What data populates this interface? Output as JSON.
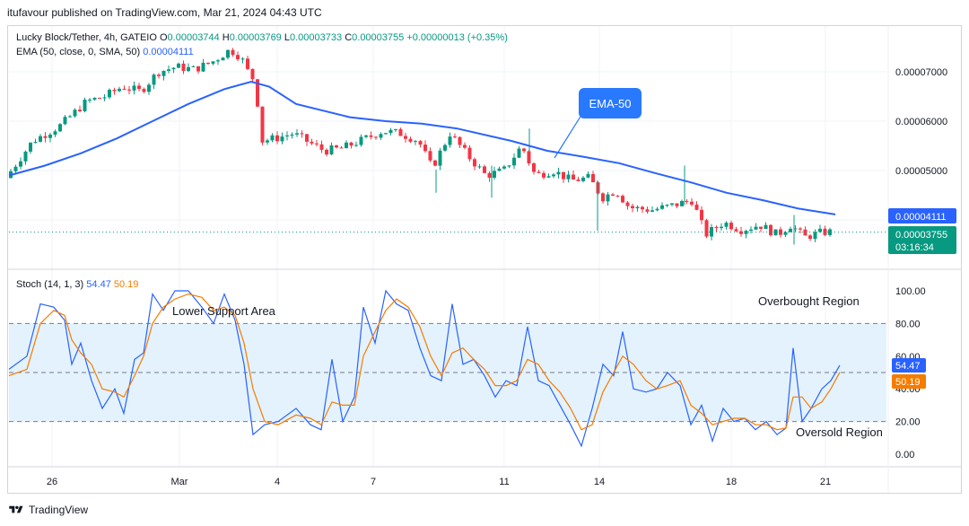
{
  "publisher_line": "itufavour published on TradingView.com, Mar 21, 2024 04:43 UTC",
  "footer_brand": "TradingView",
  "legend": {
    "symbol": "Lucky Block/Tether, 4h, GATEIO",
    "o_label": "O",
    "o_value": "0.00003744",
    "h_label": "H",
    "h_value": "0.00003769",
    "l_label": "L",
    "l_value": "0.00003733",
    "c_label": "C",
    "c_value": "0.00003755",
    "change": "+0.00000013 (+0.35%)",
    "ema_label": "EMA (50, close, 0, SMA, 50)",
    "ema_value": "0.00004111",
    "stoch_label": "Stoch (14, 1, 3)",
    "stoch_k": "54.47",
    "stoch_d": "50.19"
  },
  "price_badges": {
    "ema": "0.00004111",
    "last": "0.00003755",
    "countdown": "03:16:34"
  },
  "stoch_badges": {
    "k": "54.47",
    "d": "50.19"
  },
  "annotations": {
    "ema_callout": "EMA-50",
    "lower_support": "Lower Support Area",
    "overbought": "Overbought Region",
    "oversold": "Oversold Region"
  },
  "colors": {
    "up": "#089981",
    "down": "#f23645",
    "ema": "#2962ff",
    "stoch_k": "#2962ff",
    "stoch_d": "#f57c00",
    "band": "#e3f2fd",
    "callout": "#2979ff",
    "label_badge": "#2962ff"
  },
  "chart_data": [
    {
      "type": "candlestick",
      "title": "Lucky Block/Tether, 4h, GATEIO",
      "x_ticks": [
        "26",
        "Mar",
        "4",
        "7",
        "11",
        "14",
        "18",
        "21"
      ],
      "y_ticks": [
        "0.00007000",
        "0.00006000",
        "0.00005000"
      ],
      "ylim": [
        3.3e-05,
        7.8e-05
      ],
      "last_price": 3.755e-05,
      "ema50_last": 4.111e-05,
      "series": [
        {
          "name": "EMA (50, close, 0, SMA, 50)",
          "points": [
            [
              0,
              4.9e-05
            ],
            [
              40,
              5.1e-05
            ],
            [
              80,
              5.35e-05
            ],
            [
              120,
              5.65e-05
            ],
            [
              160,
              6e-05
            ],
            [
              200,
              6.35e-05
            ],
            [
              240,
              6.65e-05
            ],
            [
              270,
              6.8e-05
            ],
            [
              290,
              6.7e-05
            ],
            [
              320,
              6.35e-05
            ],
            [
              380,
              6.08e-05
            ],
            [
              420,
              6e-05
            ],
            [
              460,
              5.95e-05
            ],
            [
              500,
              5.85e-05
            ],
            [
              560,
              5.6e-05
            ],
            [
              600,
              5.4e-05
            ],
            [
              640,
              5.28e-05
            ],
            [
              680,
              5.15e-05
            ],
            [
              720,
              4.95e-05
            ],
            [
              760,
              4.76e-05
            ],
            [
              800,
              4.55e-05
            ],
            [
              840,
              4.4e-05
            ],
            [
              880,
              4.23e-05
            ],
            [
              921,
              4.111e-05
            ]
          ]
        }
      ],
      "ohlc_shape": "approximate"
    },
    {
      "type": "line",
      "title": "Stoch (14, 1, 3)",
      "y_ticks": [
        "100.00",
        "80.00",
        "60.00",
        "40.00",
        "20.00",
        "0.00"
      ],
      "ylim": [
        -5,
        105
      ],
      "bands": [
        20,
        50,
        80
      ],
      "series": [
        {
          "name": "%K",
          "last": 54.47,
          "points": [
            [
              0,
              52
            ],
            [
              20,
              60
            ],
            [
              35,
              92
            ],
            [
              50,
              90
            ],
            [
              62,
              82
            ],
            [
              70,
              55
            ],
            [
              80,
              68
            ],
            [
              92,
              45
            ],
            [
              104,
              28
            ],
            [
              118,
              40
            ],
            [
              128,
              25
            ],
            [
              140,
              58
            ],
            [
              150,
              62
            ],
            [
              160,
              98
            ],
            [
              172,
              88
            ],
            [
              185,
              100
            ],
            [
              200,
              100
            ],
            [
              215,
              90
            ],
            [
              228,
              80
            ],
            [
              240,
              98
            ],
            [
              252,
              82
            ],
            [
              262,
              55
            ],
            [
              272,
              12
            ],
            [
              285,
              18
            ],
            [
              300,
              20
            ],
            [
              320,
              28
            ],
            [
              336,
              18
            ],
            [
              348,
              15
            ],
            [
              360,
              58
            ],
            [
              372,
              20
            ],
            [
              385,
              35
            ],
            [
              395,
              90
            ],
            [
              408,
              68
            ],
            [
              420,
              100
            ],
            [
              432,
              92
            ],
            [
              445,
              88
            ],
            [
              458,
              65
            ],
            [
              470,
              48
            ],
            [
              482,
              45
            ],
            [
              494,
              92
            ],
            [
              506,
              55
            ],
            [
              518,
              58
            ],
            [
              530,
              48
            ],
            [
              542,
              35
            ],
            [
              554,
              45
            ],
            [
              566,
              42
            ],
            [
              578,
              78
            ],
            [
              590,
              45
            ],
            [
              602,
              42
            ],
            [
              614,
              30
            ],
            [
              626,
              18
            ],
            [
              638,
              5
            ],
            [
              650,
              28
            ],
            [
              662,
              55
            ],
            [
              674,
              48
            ],
            [
              684,
              75
            ],
            [
              696,
              40
            ],
            [
              710,
              38
            ],
            [
              722,
              40
            ],
            [
              734,
              50
            ],
            [
              748,
              42
            ],
            [
              760,
              18
            ],
            [
              772,
              30
            ],
            [
              784,
              8
            ],
            [
              796,
              28
            ],
            [
              808,
              20
            ],
            [
              820,
              22
            ],
            [
              832,
              15
            ],
            [
              844,
              20
            ],
            [
              856,
              12
            ],
            [
              866,
              16
            ],
            [
              874,
              65
            ],
            [
              884,
              20
            ],
            [
              894,
              28
            ],
            [
              906,
              40
            ],
            [
              916,
              45
            ],
            [
              926,
              54.47
            ]
          ]
        },
        {
          "name": "%D",
          "last": 50.19,
          "points": [
            [
              0,
              48
            ],
            [
              20,
              52
            ],
            [
              35,
              80
            ],
            [
              50,
              88
            ],
            [
              62,
              85
            ],
            [
              70,
              70
            ],
            [
              80,
              62
            ],
            [
              92,
              55
            ],
            [
              104,
              40
            ],
            [
              118,
              38
            ],
            [
              128,
              35
            ],
            [
              140,
              48
            ],
            [
              150,
              60
            ],
            [
              160,
              80
            ],
            [
              172,
              90
            ],
            [
              185,
              95
            ],
            [
              200,
              98
            ],
            [
              215,
              96
            ],
            [
              228,
              88
            ],
            [
              240,
              90
            ],
            [
              252,
              85
            ],
            [
              262,
              68
            ],
            [
              272,
              40
            ],
            [
              285,
              20
            ],
            [
              300,
              18
            ],
            [
              320,
              24
            ],
            [
              336,
              22
            ],
            [
              348,
              18
            ],
            [
              360,
              32
            ],
            [
              372,
              30
            ],
            [
              385,
              30
            ],
            [
              395,
              60
            ],
            [
              408,
              75
            ],
            [
              420,
              88
            ],
            [
              432,
              95
            ],
            [
              445,
              90
            ],
            [
              458,
              78
            ],
            [
              470,
              60
            ],
            [
              482,
              48
            ],
            [
              494,
              62
            ],
            [
              506,
              65
            ],
            [
              518,
              58
            ],
            [
              530,
              52
            ],
            [
              542,
              42
            ],
            [
              554,
              42
            ],
            [
              566,
              45
            ],
            [
              578,
              58
            ],
            [
              590,
              55
            ],
            [
              602,
              45
            ],
            [
              614,
              38
            ],
            [
              626,
              28
            ],
            [
              638,
              15
            ],
            [
              650,
              18
            ],
            [
              662,
              38
            ],
            [
              674,
              50
            ],
            [
              684,
              60
            ],
            [
              696,
              55
            ],
            [
              710,
              45
            ],
            [
              722,
              40
            ],
            [
              734,
              42
            ],
            [
              748,
              45
            ],
            [
              760,
              30
            ],
            [
              772,
              25
            ],
            [
              784,
              18
            ],
            [
              796,
              20
            ],
            [
              808,
              22
            ],
            [
              820,
              22
            ],
            [
              832,
              18
            ],
            [
              844,
              18
            ],
            [
              856,
              15
            ],
            [
              866,
              16
            ],
            [
              874,
              35
            ],
            [
              884,
              35
            ],
            [
              894,
              28
            ],
            [
              906,
              32
            ],
            [
              916,
              40
            ],
            [
              926,
              50.19
            ]
          ]
        }
      ]
    }
  ]
}
